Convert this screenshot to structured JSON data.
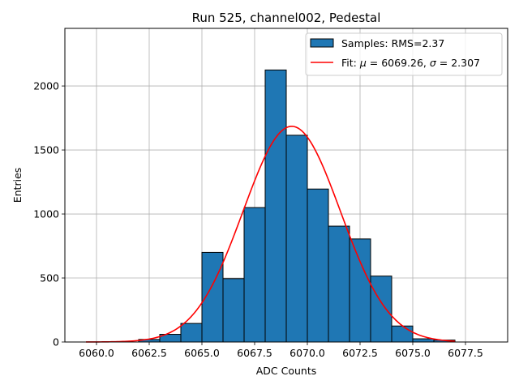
{
  "chart_data": {
    "type": "bar",
    "title": "Run 525, channel002, Pedestal",
    "xlabel": "ADC Counts",
    "ylabel": "Entries",
    "xlim": [
      6058.5,
      6079.5
    ],
    "ylim": [
      0,
      2450
    ],
    "grid": true,
    "xticks": [
      6060.0,
      6062.5,
      6065.0,
      6067.5,
      6070.0,
      6072.5,
      6075.0,
      6077.5
    ],
    "xtick_labels": [
      "6060.0",
      "6062.5",
      "6065.0",
      "6067.5",
      "6070.0",
      "6072.5",
      "6075.0",
      "6077.5"
    ],
    "yticks": [
      0,
      500,
      1000,
      1500,
      2000
    ],
    "ytick_labels": [
      "0",
      "500",
      "1000",
      "1500",
      "2000"
    ],
    "bar_color": "#1f77b4",
    "fit_color": "#ff0000",
    "histogram": {
      "name": "Samples: RMS=2.37",
      "bins": [
        {
          "x0": 6062.0,
          "x1": 6063.0,
          "value": 20
        },
        {
          "x0": 6063.0,
          "x1": 6064.0,
          "value": 60
        },
        {
          "x0": 6064.0,
          "x1": 6065.0,
          "value": 145
        },
        {
          "x0": 6065.0,
          "x1": 6066.0,
          "value": 700
        },
        {
          "x0": 6066.0,
          "x1": 6067.0,
          "value": 495
        },
        {
          "x0": 6067.0,
          "x1": 6068.0,
          "value": 1050
        },
        {
          "x0": 6068.0,
          "x1": 6069.0,
          "value": 2125
        },
        {
          "x0": 6069.0,
          "x1": 6070.0,
          "value": 1615
        },
        {
          "x0": 6070.0,
          "x1": 6071.0,
          "value": 1195
        },
        {
          "x0": 6071.0,
          "x1": 6072.0,
          "value": 905
        },
        {
          "x0": 6072.0,
          "x1": 6073.0,
          "value": 805
        },
        {
          "x0": 6073.0,
          "x1": 6074.0,
          "value": 515
        },
        {
          "x0": 6074.0,
          "x1": 6075.0,
          "value": 125
        },
        {
          "x0": 6075.0,
          "x1": 6076.0,
          "value": 25
        },
        {
          "x0": 6076.0,
          "x1": 6077.0,
          "value": 15
        }
      ]
    },
    "fit": {
      "name_prefix": "Fit: ",
      "mu_symbol": "μ",
      "mu_text": " = 6069.26, ",
      "sigma_symbol": "σ",
      "sigma_text": " = 2.307",
      "mu": 6069.26,
      "sigma": 2.307,
      "amplitude": 1685,
      "x_range": [
        6059.5,
        6077.0
      ]
    },
    "legend_position": "upper-right"
  }
}
